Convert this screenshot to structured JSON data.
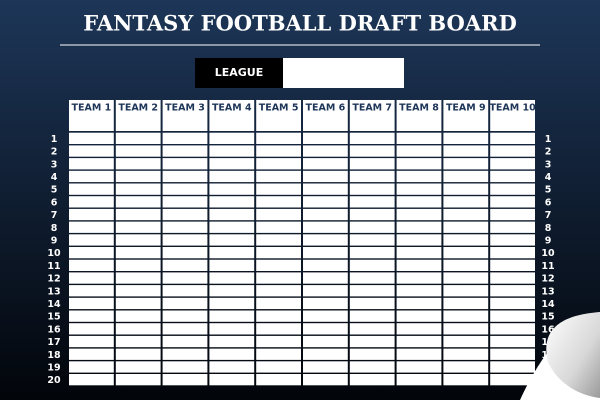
{
  "header": {
    "title": "FANTASY FOOTBALL DRAFT BOARD",
    "league_label": "LEAGUE"
  },
  "table": {
    "columns": [
      "TEAM 1",
      "TEAM 2",
      "TEAM 3",
      "TEAM 4",
      "TEAM 5",
      "TEAM 6",
      "TEAM 7",
      "TEAM 8",
      "TEAM 9",
      "TEAM 10"
    ],
    "rounds": [
      1,
      2,
      3,
      4,
      5,
      6,
      7,
      8,
      9,
      10,
      11,
      12,
      13,
      14,
      15,
      16,
      17,
      18,
      19,
      20
    ]
  }
}
